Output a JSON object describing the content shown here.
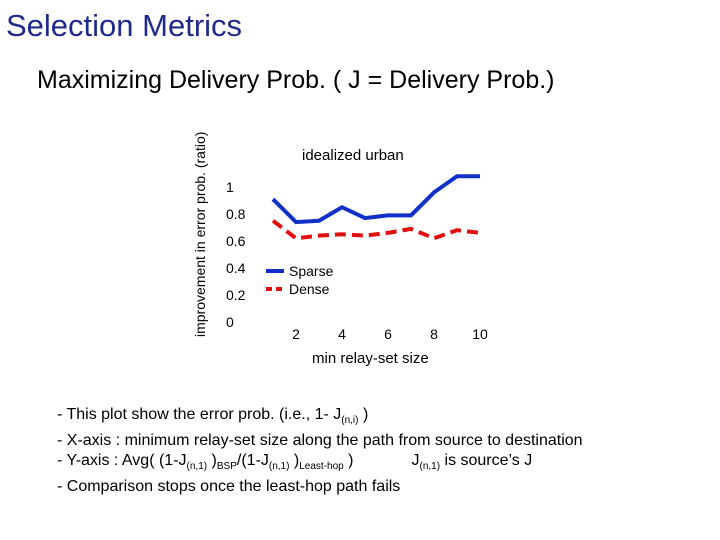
{
  "slide": {
    "title": "Selection Metrics",
    "subtitle": "Maximizing  Delivery Prob. ( J = Delivery Prob.)"
  },
  "chart_data": {
    "type": "line",
    "title": "idealized urban",
    "xlabel": "min relay-set size",
    "ylabel": "improvement in error prob. (ratio)",
    "xlim": [
      0,
      10
    ],
    "ylim": [
      0,
      1
    ],
    "xticks": [
      "2",
      "4",
      "6",
      "8",
      "10"
    ],
    "yticks": [
      "0",
      "0.2",
      "0.4",
      "0.6",
      "0.8",
      "1"
    ],
    "legend": "inside-left",
    "series": [
      {
        "name": "Sparse",
        "color": "#1030c8",
        "style": "solid",
        "x": [
          1,
          2,
          3,
          4,
          5,
          6,
          7,
          8,
          9,
          10
        ],
        "y": [
          0.91,
          0.74,
          0.75,
          0.85,
          0.77,
          0.79,
          0.79,
          0.96,
          1.08,
          1.08
        ]
      },
      {
        "name": "Dense",
        "color": "#e01010",
        "style": "dashed",
        "x": [
          1,
          2,
          3,
          4,
          5,
          6,
          7,
          8,
          9,
          10
        ],
        "y": [
          0.75,
          0.62,
          0.64,
          0.65,
          0.64,
          0.66,
          0.69,
          0.62,
          0.68,
          0.66
        ]
      }
    ]
  },
  "notes": {
    "line1": {
      "a": "- This plot show the error prob. (i.e., 1- J",
      "sub1": "(n,i)",
      "b": " )"
    },
    "line2": {
      "a": "- X-axis : minimum relay-set size along the path from source to destination"
    },
    "line3": {
      "a": "- Y-axis : Avg( (1-J",
      "sub1": "(n,1)",
      "b": " )",
      "sub2": "BSP",
      "c": "/(1-J",
      "sub3": "(n,1)",
      "d": " )",
      "sub4": "Least-hop",
      "e": " )",
      "f": "J",
      "sub5": "(n,1)",
      "g": " is source’s J"
    },
    "line4": {
      "a": "- Comparison stops once the least-hop path fails"
    }
  }
}
